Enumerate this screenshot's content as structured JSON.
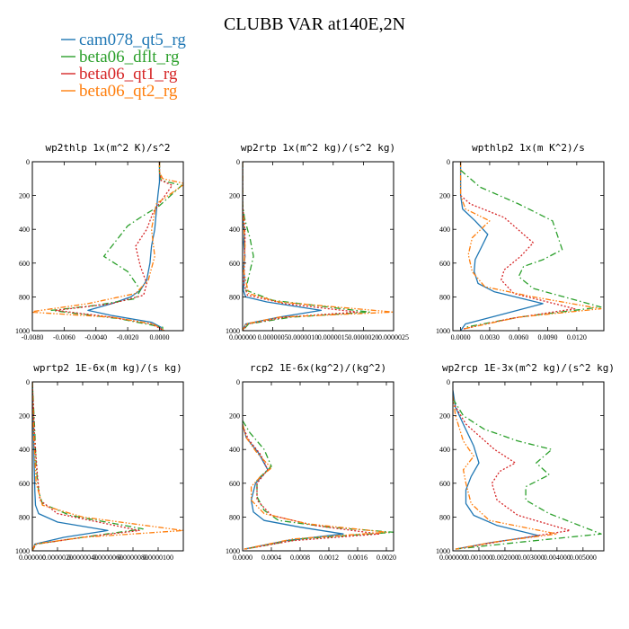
{
  "title": "CLUBB VAR at140E,2N",
  "colors": {
    "cam078_qt5_rg": "#1f77b4",
    "beta06_dflt_rg": "#2ca02c",
    "beta06_qt1_rg": "#d62728",
    "beta06_qt2_rg": "#ff7f0e"
  },
  "legend": [
    {
      "name": "cam078_qt5_rg",
      "color": "#1f77b4",
      "dash": "solid"
    },
    {
      "name": "beta06_dflt_rg",
      "color": "#2ca02c",
      "dash": "dash-dot"
    },
    {
      "name": "beta06_qt1_rg",
      "color": "#d62728",
      "dash": "dotted"
    },
    {
      "name": "beta06_qt2_rg",
      "color": "#ff7f0e",
      "dash": "dash-dot-dot"
    }
  ],
  "chart_data": [
    {
      "type": "line",
      "title": "wp2thlp  1x(m^2 K)/s^2",
      "xlim": [
        -0.008,
        0.0015
      ],
      "ylim": [
        1000,
        0
      ],
      "xticks": [
        "-0.0080",
        "-0.0060",
        "-0.0040",
        "-0.0020",
        "0.0000"
      ],
      "xtick_values": [
        -0.008,
        -0.006,
        -0.004,
        -0.002,
        0.0
      ],
      "yticks": [
        0,
        200,
        400,
        600,
        800,
        1000
      ],
      "series": [
        {
          "name": "cam078_qt5_rg",
          "x": [
            0.0,
            0.0,
            0.0,
            -0.0001,
            -0.0002,
            -0.0003,
            -0.0005,
            -0.0006,
            -0.0008,
            -0.0012,
            -0.0018,
            -0.003,
            -0.0045,
            -0.003,
            -0.0005,
            0.0001,
            0.0001
          ],
          "y": [
            0,
            60,
            120,
            200,
            300,
            400,
            500,
            600,
            700,
            760,
            800,
            840,
            880,
            910,
            950,
            980,
            1000
          ]
        },
        {
          "name": "beta06_dflt_rg",
          "x": [
            0.0,
            0.0,
            0.0001,
            0.0014,
            0.0,
            -0.0012,
            -0.002,
            -0.0025,
            -0.0035,
            -0.002,
            -0.0012,
            -0.0015,
            -0.004,
            -0.0068,
            -0.0025,
            0.0002,
            0.0002
          ],
          "y": [
            0,
            60,
            110,
            140,
            260,
            330,
            380,
            440,
            560,
            650,
            760,
            810,
            850,
            880,
            930,
            980,
            1000
          ]
        },
        {
          "name": "beta06_qt1_rg",
          "x": [
            0.0,
            0.0,
            0.0001,
            0.0008,
            -0.0004,
            -0.0008,
            -0.0015,
            -0.0012,
            -0.0008,
            -0.001,
            -0.003,
            -0.0065,
            -0.003,
            -0.0005,
            0.0003
          ],
          "y": [
            0,
            60,
            110,
            140,
            300,
            400,
            500,
            620,
            720,
            790,
            840,
            880,
            920,
            960,
            1000
          ]
        },
        {
          "name": "beta06_qt2_rg",
          "x": [
            0.0,
            0.0,
            0.0002,
            0.0016,
            -0.0002,
            -0.0005,
            -0.0003,
            -0.0007,
            -0.0015,
            -0.0045,
            -0.0082,
            -0.003,
            -0.0004,
            0.0003
          ],
          "y": [
            0,
            60,
            100,
            130,
            250,
            400,
            560,
            700,
            780,
            840,
            890,
            920,
            960,
            1000
          ]
        }
      ]
    },
    {
      "type": "line",
      "title": "wp2rtp  1x(m^2 kg)/(s^2 kg)",
      "xlim": [
        0.0,
        0.00025
      ],
      "ylim": [
        1000,
        0
      ],
      "xticks": [
        "0.000000",
        "0.0000005",
        "0.0000010",
        "0.0000015",
        "0.0000020",
        "0.0000025"
      ],
      "xtick_values": [
        0.0,
        5e-05,
        0.0001,
        0.00015,
        0.0002,
        0.00025
      ],
      "yticks": [
        0,
        200,
        400,
        600,
        800,
        1000
      ],
      "series": [
        {
          "name": "cam078_qt5_rg",
          "x": [
            0.0,
            0.0,
            1e-06,
            3e-06,
            2e-06,
            4e-06,
            2e-06,
            3e-06,
            1e-06,
            5e-06,
            4e-05,
            0.00013,
            6e-05,
            5e-06,
            0.0
          ],
          "y": [
            0,
            300,
            360,
            420,
            480,
            560,
            620,
            700,
            760,
            800,
            830,
            880,
            920,
            960,
            1000
          ]
        },
        {
          "name": "beta06_dflt_rg",
          "x": [
            0.0,
            0.0,
            3e-06,
            8e-06,
            1.2e-05,
            1.8e-05,
            1.2e-05,
            5e-06,
            5e-05,
            0.00021,
            8e-05,
            1e-05,
            0.0
          ],
          "y": [
            0,
            250,
            330,
            400,
            450,
            560,
            650,
            760,
            820,
            890,
            920,
            960,
            1000
          ]
        },
        {
          "name": "beta06_qt1_rg",
          "x": [
            0.0,
            0.0,
            3e-06,
            4e-06,
            3e-06,
            2e-06,
            8e-06,
            7e-05,
            0.00019,
            7e-05,
            8e-06,
            0.0
          ],
          "y": [
            0,
            270,
            350,
            450,
            600,
            720,
            790,
            840,
            890,
            920,
            960,
            1000
          ]
        },
        {
          "name": "beta06_qt2_rg",
          "x": [
            0.0,
            0.0,
            2e-06,
            4e-06,
            2e-06,
            1e-05,
            6e-05,
            0.00025,
            6e-05,
            5e-06,
            0.0
          ],
          "y": [
            0,
            280,
            380,
            500,
            650,
            780,
            830,
            890,
            920,
            960,
            1000
          ]
        }
      ]
    },
    {
      "type": "line",
      "title": "wpthlp2  1x(m K^2)/s",
      "xlim": [
        -0.0008,
        0.0148
      ],
      "ylim": [
        1000,
        0
      ],
      "xticks": [
        "0.0000",
        "0.0030",
        "0.0060",
        "0.0090",
        "0.0120"
      ],
      "xtick_values": [
        0.0,
        0.003,
        0.006,
        0.009,
        0.012
      ],
      "yticks": [
        0,
        200,
        400,
        600,
        800,
        1000
      ],
      "series": [
        {
          "name": "cam078_qt5_rg",
          "x": [
            0.0,
            0.0,
            0.0002,
            0.0015,
            0.0028,
            0.0022,
            0.0015,
            0.0014,
            0.0018,
            0.0035,
            0.0085,
            0.0045,
            0.0005,
            0.0
          ],
          "y": [
            0,
            200,
            280,
            350,
            430,
            500,
            580,
            650,
            720,
            770,
            840,
            900,
            960,
            1000
          ]
        },
        {
          "name": "beta06_dflt_rg",
          "x": [
            0.0,
            0.002,
            0.006,
            0.0095,
            0.0105,
            0.0085,
            0.0065,
            0.006,
            0.0075,
            0.0145,
            0.006,
            0.0005
          ],
          "y": [
            50,
            150,
            250,
            350,
            520,
            580,
            620,
            680,
            750,
            860,
            920,
            980
          ]
        },
        {
          "name": "beta06_qt1_rg",
          "x": [
            0.0,
            0.001,
            0.0045,
            0.0075,
            0.0062,
            0.0045,
            0.0042,
            0.0055,
            0.0118,
            0.005,
            0.0003
          ],
          "y": [
            200,
            250,
            330,
            480,
            560,
            640,
            700,
            780,
            870,
            930,
            990
          ]
        },
        {
          "name": "beta06_qt2_rg",
          "x": [
            0.0,
            0.0,
            0.0005,
            0.003,
            0.0012,
            0.0008,
            0.0012,
            0.0025,
            0.0075,
            0.0145,
            0.006,
            0.0003
          ],
          "y": [
            0,
            200,
            280,
            350,
            450,
            550,
            650,
            740,
            800,
            870,
            920,
            990
          ]
        }
      ]
    },
    {
      "type": "line",
      "title": "wprtp2  1E-6x(m kg)/(s kg)",
      "xlim": [
        0.0,
        0.00012
      ],
      "ylim": [
        1000,
        0
      ],
      "xticks": [
        "0.000000",
        "0.0000020",
        "0.0000040",
        "0.0000060",
        "0.0000080",
        "0.0000100"
      ],
      "xtick_values": [
        0.0,
        2e-05,
        4e-05,
        6e-05,
        8e-05,
        0.0001
      ],
      "yticks": [
        0,
        200,
        400,
        600,
        800,
        1000
      ],
      "series": [
        {
          "name": "cam078_qt5_rg",
          "x": [
            0.0,
            1e-06,
            1.5e-06,
            2e-06,
            2.5e-06,
            5e-06,
            2e-05,
            6e-05,
            2.5e-05,
            2e-06,
            0.0
          ],
          "y": [
            0,
            300,
            500,
            650,
            730,
            780,
            830,
            880,
            920,
            960,
            1000
          ]
        },
        {
          "name": "beta06_dflt_rg",
          "x": [
            0.0,
            2e-06,
            3e-06,
            5e-06,
            8e-06,
            3e-05,
            8.8e-05,
            4e-05,
            3e-06,
            0.0
          ],
          "y": [
            0,
            300,
            500,
            650,
            720,
            790,
            870,
            920,
            960,
            1000
          ]
        },
        {
          "name": "beta06_qt1_rg",
          "x": [
            0.0,
            2e-06,
            4e-06,
            6e-06,
            2e-05,
            8.5e-05,
            4e-05,
            3e-06,
            0.0
          ],
          "y": [
            0,
            350,
            550,
            700,
            780,
            880,
            920,
            960,
            1000
          ]
        },
        {
          "name": "beta06_qt2_rg",
          "x": [
            0.0,
            1e-06,
            3e-06,
            8e-06,
            4e-05,
            0.00012,
            4e-05,
            2e-06,
            0.0
          ],
          "y": [
            0,
            300,
            600,
            730,
            800,
            880,
            920,
            960,
            1000
          ]
        }
      ]
    },
    {
      "type": "line",
      "title": "rcp2  1E-6x(kg^2)/(kg^2)",
      "xlim": [
        0.0,
        0.0021
      ],
      "ylim": [
        1000,
        0
      ],
      "xticks": [
        "0.0000",
        "0.0004",
        "0.0008",
        "0.0012",
        "0.0016",
        "0.0020"
      ],
      "xtick_values": [
        0.0,
        0.0004,
        0.0008,
        0.0012,
        0.0016,
        0.002
      ],
      "yticks": [
        0,
        200,
        400,
        600,
        800,
        1000
      ],
      "series": [
        {
          "name": "cam078_qt5_rg",
          "x": [
            0.0,
            5e-05,
            0.00022,
            0.00035,
            0.00018,
            0.00012,
            0.00015,
            0.0003,
            0.0008,
            0.0014,
            0.0006,
            2e-05
          ],
          "y": [
            250,
            330,
            420,
            520,
            600,
            700,
            770,
            820,
            860,
            900,
            940,
            990
          ]
        },
        {
          "name": "beta06_dflt_rg",
          "x": [
            0.0,
            0.0001,
            0.0003,
            0.0004,
            0.0002,
            0.0002,
            0.0003,
            0.0005,
            0.0012,
            0.0021,
            0.0008,
            3e-05
          ],
          "y": [
            230,
            300,
            400,
            500,
            580,
            680,
            760,
            820,
            860,
            890,
            930,
            990
          ]
        },
        {
          "name": "beta06_qt1_rg",
          "x": [
            0.0,
            8e-05,
            0.00025,
            0.00035,
            0.0002,
            0.0002,
            0.0004,
            0.001,
            0.0019,
            0.0007,
            3e-05
          ],
          "y": [
            260,
            340,
            430,
            520,
            600,
            700,
            790,
            850,
            900,
            940,
            990
          ]
        },
        {
          "name": "beta06_qt2_rg",
          "x": [
            0.0,
            5e-05,
            0.0002,
            0.0004,
            0.00025,
            0.00012,
            0.00012,
            0.0003,
            0.0009,
            0.002,
            0.0007,
            2e-05
          ],
          "y": [
            250,
            330,
            420,
            510,
            560,
            620,
            700,
            780,
            840,
            890,
            930,
            990
          ]
        }
      ]
    },
    {
      "type": "line",
      "title": "wp2rcp  1E-3x(m^2 kg)/(s^2 kg)",
      "xlim": [
        0.0,
        0.0058
      ],
      "ylim": [
        1000,
        0
      ],
      "xticks": [
        "0.000000",
        "0.001000",
        "0.002000",
        "0.003000",
        "0.004000",
        "0.005000"
      ],
      "xtick_values": [
        0.0,
        0.001,
        0.002,
        0.003,
        0.004,
        0.005
      ],
      "yticks": [
        0,
        200,
        400,
        600,
        800,
        1000
      ],
      "series": [
        {
          "name": "cam078_qt5_rg",
          "x": [
            0.0,
            0.0001,
            0.0004,
            0.0008,
            0.001,
            0.0007,
            0.0005,
            0.0005,
            0.0008,
            0.0017,
            0.0033,
            0.0015,
            0.0001
          ],
          "y": [
            50,
            150,
            250,
            380,
            480,
            560,
            640,
            720,
            790,
            850,
            910,
            950,
            990
          ]
        },
        {
          "name": "beta06_dflt_rg",
          "x": [
            0.0,
            0.0004,
            0.0012,
            0.0025,
            0.0038,
            0.0032,
            0.0037,
            0.0028,
            0.0028,
            0.0037,
            0.0057,
            0.0025,
            0.0001
          ],
          "y": [
            100,
            200,
            280,
            350,
            400,
            480,
            550,
            620,
            700,
            780,
            900,
            950,
            990
          ]
        },
        {
          "name": "beta06_qt1_rg",
          "x": [
            0.0,
            0.0005,
            0.0016,
            0.0024,
            0.0018,
            0.0015,
            0.0017,
            0.0025,
            0.0045,
            0.002,
            0.0001
          ],
          "y": [
            120,
            250,
            400,
            480,
            530,
            600,
            700,
            790,
            880,
            940,
            990
          ]
        },
        {
          "name": "beta06_qt2_rg",
          "x": [
            0.0,
            0.0001,
            0.0004,
            0.0008,
            0.0004,
            0.0005,
            0.0007,
            0.0014,
            0.004,
            0.0015,
            0.0001
          ],
          "y": [
            80,
            200,
            350,
            440,
            520,
            600,
            720,
            820,
            900,
            950,
            990
          ]
        }
      ]
    }
  ]
}
